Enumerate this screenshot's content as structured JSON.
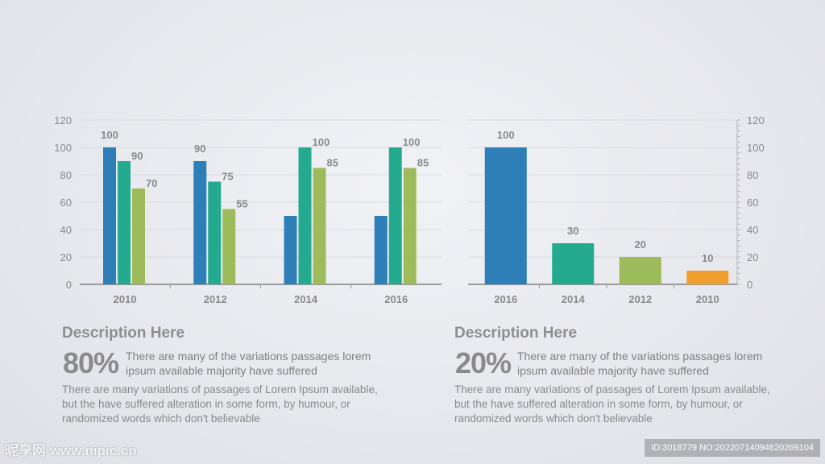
{
  "chart_data": [
    {
      "type": "bar",
      "categories": [
        "2010",
        "2012",
        "2014",
        "2016"
      ],
      "series": [
        {
          "values": [
            100,
            90,
            50,
            50
          ],
          "color": "#2e7fb8"
        },
        {
          "values": [
            90,
            75,
            100,
            100
          ],
          "color": "#23aa8f"
        },
        {
          "values": [
            70,
            55,
            85,
            85
          ],
          "color": "#9dbb5a"
        }
      ],
      "data_labels": [
        [
          100,
          90,
          null,
          null
        ],
        [
          90,
          75,
          100,
          100
        ],
        [
          70,
          55,
          85,
          85
        ]
      ],
      "yticks": [
        "0",
        "20",
        "40",
        "60",
        "80",
        "100",
        "120"
      ],
      "ylim": [
        0,
        120
      ],
      "y_axis_side": "left",
      "grid": true
    },
    {
      "type": "bar",
      "categories": [
        "2016",
        "2014",
        "2012",
        "2010"
      ],
      "values": [
        100,
        30,
        20,
        10
      ],
      "colors": [
        "#2e7fb8",
        "#23aa8f",
        "#9dbb5a",
        "#f0a02e"
      ],
      "yticks": [
        "0",
        "20",
        "40",
        "60",
        "80",
        "100",
        "120"
      ],
      "ylim": [
        0,
        120
      ],
      "y_axis_side": "right",
      "grid": true
    }
  ],
  "descriptions": [
    {
      "title": "Description Here",
      "percent": "80%",
      "lead": "There are many of the variations passages lorem ipsum available majority have suffered",
      "body": "There are many variations of passages  of Lorem Ipsum available, but the have suffered alteration in some  form, by humour, or randomized words which  don't believable"
    },
    {
      "title": "Description Here",
      "percent": "20%",
      "lead": "There are many of the variations passages lorem ipsum available majority have suffered",
      "body": "There are many variations of passages  of Lorem Ipsum available, but the have suffered alteration in some  form, by humour, or randomized words which  don't believable"
    }
  ],
  "watermark": {
    "left": "昵享网 www.nipic.cn",
    "right": "ID:3018779 NO:20220714094620269104"
  }
}
